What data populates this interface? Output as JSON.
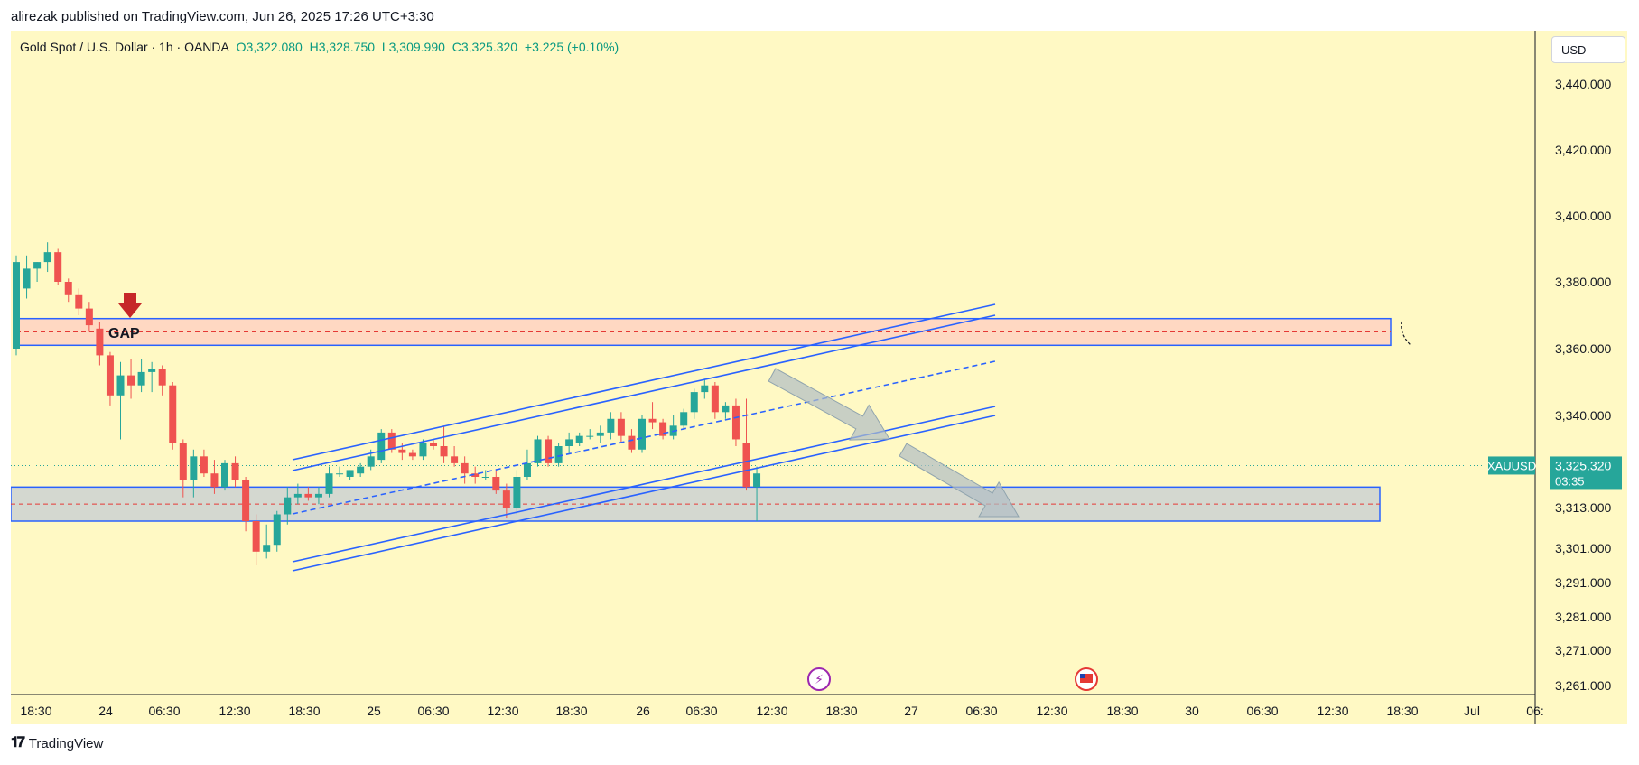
{
  "header": {
    "published_text": "alirezak published on TradingView.com, Jun 26, 2025 17:26 UTC+3:30"
  },
  "symbol": {
    "name": "Gold Spot / U.S. Dollar · 1h · OANDA",
    "open_label": "O",
    "open": "3,322.080",
    "high_label": "H",
    "high": "3,328.750",
    "low_label": "L",
    "low": "3,309.990",
    "close_label": "C",
    "close": "3,325.320",
    "change": "+3.225 (+0.10%)"
  },
  "currency": "USD",
  "price_tag": {
    "ticker": "XAUUSD",
    "price": "3,325.320",
    "countdown": "03:35"
  },
  "annotations": {
    "gap_label": "GAP"
  },
  "footer": {
    "brand": "TradingView"
  },
  "colors": {
    "background": "#fff9c4",
    "up": "#26a69a",
    "down": "#ef5350",
    "trend": "#2962ff",
    "price_tag": "#26a69a",
    "resistance_zone": "#ffd8c2",
    "support_zone": "#d4d8d0"
  },
  "chart_data": {
    "type": "candlestick",
    "interval": "1h",
    "ylim": [
      3261,
      3440
    ],
    "y_ticks": [
      "3,440.000",
      "3,420.000",
      "3,400.000",
      "3,380.000",
      "3,360.000",
      "3,340.000",
      "3,313.000",
      "3,301.000",
      "3,291.000",
      "3,281.000",
      "3,271.000",
      "3,261.000"
    ],
    "x_ticks": [
      "18:30",
      "24",
      "06:30",
      "12:30",
      "18:30",
      "25",
      "06:30",
      "12:30",
      "18:30",
      "26",
      "06:30",
      "12:30",
      "18:30",
      "27",
      "06:30",
      "12:30",
      "18:30",
      "30",
      "06:30",
      "12:30",
      "18:30",
      "Jul",
      "06:"
    ],
    "candles": [
      {
        "o": 3360,
        "h": 3388,
        "l": 3358,
        "c": 3386
      },
      {
        "o": 3378,
        "h": 3388,
        "l": 3375,
        "c": 3384
      },
      {
        "o": 3384,
        "h": 3386,
        "l": 3380,
        "c": 3386
      },
      {
        "o": 3386,
        "h": 3392,
        "l": 3383,
        "c": 3389
      },
      {
        "o": 3389,
        "h": 3390,
        "l": 3379,
        "c": 3380
      },
      {
        "o": 3380,
        "h": 3381,
        "l": 3374,
        "c": 3376
      },
      {
        "o": 3376,
        "h": 3378,
        "l": 3370,
        "c": 3372
      },
      {
        "o": 3372,
        "h": 3374,
        "l": 3365,
        "c": 3367
      },
      {
        "o": 3366,
        "h": 3368,
        "l": 3355,
        "c": 3358
      },
      {
        "o": 3358,
        "h": 3359,
        "l": 3343,
        "c": 3346
      },
      {
        "o": 3346,
        "h": 3356,
        "l": 3333,
        "c": 3352
      },
      {
        "o": 3352,
        "h": 3357,
        "l": 3345,
        "c": 3349
      },
      {
        "o": 3349,
        "h": 3357,
        "l": 3347,
        "c": 3353
      },
      {
        "o": 3353,
        "h": 3356,
        "l": 3347,
        "c": 3354
      },
      {
        "o": 3354,
        "h": 3355,
        "l": 3346,
        "c": 3349
      },
      {
        "o": 3349,
        "h": 3350,
        "l": 3330,
        "c": 3332
      },
      {
        "o": 3332,
        "h": 3333,
        "l": 3316,
        "c": 3321
      },
      {
        "o": 3321,
        "h": 3330,
        "l": 3316,
        "c": 3328
      },
      {
        "o": 3328,
        "h": 3330,
        "l": 3322,
        "c": 3323
      },
      {
        "o": 3323,
        "h": 3327,
        "l": 3317,
        "c": 3319
      },
      {
        "o": 3319,
        "h": 3327,
        "l": 3318,
        "c": 3326
      },
      {
        "o": 3326,
        "h": 3328,
        "l": 3319,
        "c": 3321
      },
      {
        "o": 3321,
        "h": 3322,
        "l": 3306,
        "c": 3309
      },
      {
        "o": 3309,
        "h": 3311,
        "l": 3296,
        "c": 3300
      },
      {
        "o": 3300,
        "h": 3308,
        "l": 3298,
        "c": 3302
      },
      {
        "o": 3302,
        "h": 3312,
        "l": 3300,
        "c": 3311
      },
      {
        "o": 3311,
        "h": 3319,
        "l": 3308,
        "c": 3316
      },
      {
        "o": 3316,
        "h": 3320,
        "l": 3314,
        "c": 3317
      },
      {
        "o": 3317,
        "h": 3319,
        "l": 3315,
        "c": 3316
      },
      {
        "o": 3316,
        "h": 3319,
        "l": 3314,
        "c": 3317
      },
      {
        "o": 3317,
        "h": 3325,
        "l": 3316,
        "c": 3323
      },
      {
        "o": 3323,
        "h": 3325,
        "l": 3322,
        "c": 3323
      },
      {
        "o": 3322,
        "h": 3324,
        "l": 3321,
        "c": 3324
      },
      {
        "o": 3323,
        "h": 3326,
        "l": 3322,
        "c": 3325
      },
      {
        "o": 3325,
        "h": 3330,
        "l": 3324,
        "c": 3328
      },
      {
        "o": 3327,
        "h": 3336,
        "l": 3326,
        "c": 3335
      },
      {
        "o": 3335,
        "h": 3336,
        "l": 3329,
        "c": 3330
      },
      {
        "o": 3330,
        "h": 3332,
        "l": 3327,
        "c": 3329
      },
      {
        "o": 3329,
        "h": 3330,
        "l": 3327,
        "c": 3328
      },
      {
        "o": 3328,
        "h": 3333,
        "l": 3327,
        "c": 3332
      },
      {
        "o": 3332,
        "h": 3333,
        "l": 3330,
        "c": 3331
      },
      {
        "o": 3331,
        "h": 3337,
        "l": 3326,
        "c": 3328
      },
      {
        "o": 3328,
        "h": 3331,
        "l": 3325,
        "c": 3326
      },
      {
        "o": 3326,
        "h": 3328,
        "l": 3320,
        "c": 3323
      },
      {
        "o": 3323,
        "h": 3325,
        "l": 3320,
        "c": 3322
      },
      {
        "o": 3322,
        "h": 3324,
        "l": 3321,
        "c": 3322
      },
      {
        "o": 3322,
        "h": 3324,
        "l": 3317,
        "c": 3318
      },
      {
        "o": 3318,
        "h": 3320,
        "l": 3310,
        "c": 3313
      },
      {
        "o": 3313,
        "h": 3324,
        "l": 3311,
        "c": 3322
      },
      {
        "o": 3322,
        "h": 3330,
        "l": 3321,
        "c": 3326
      },
      {
        "o": 3326,
        "h": 3334,
        "l": 3325,
        "c": 3333
      },
      {
        "o": 3333,
        "h": 3334,
        "l": 3325,
        "c": 3326
      },
      {
        "o": 3326,
        "h": 3332,
        "l": 3325,
        "c": 3331
      },
      {
        "o": 3331,
        "h": 3335,
        "l": 3329,
        "c": 3333
      },
      {
        "o": 3332,
        "h": 3335,
        "l": 3331,
        "c": 3334
      },
      {
        "o": 3334,
        "h": 3336,
        "l": 3333,
        "c": 3334
      },
      {
        "o": 3334,
        "h": 3337,
        "l": 3332,
        "c": 3335
      },
      {
        "o": 3335,
        "h": 3341,
        "l": 3333,
        "c": 3339
      },
      {
        "o": 3339,
        "h": 3341,
        "l": 3332,
        "c": 3334
      },
      {
        "o": 3334,
        "h": 3336,
        "l": 3329,
        "c": 3330
      },
      {
        "o": 3330,
        "h": 3340,
        "l": 3329,
        "c": 3339
      },
      {
        "o": 3339,
        "h": 3344,
        "l": 3336,
        "c": 3338
      },
      {
        "o": 3338,
        "h": 3339,
        "l": 3333,
        "c": 3334
      },
      {
        "o": 3334,
        "h": 3340,
        "l": 3333,
        "c": 3337
      },
      {
        "o": 3337,
        "h": 3342,
        "l": 3336,
        "c": 3341
      },
      {
        "o": 3341,
        "h": 3348,
        "l": 3339,
        "c": 3347
      },
      {
        "o": 3347,
        "h": 3351,
        "l": 3345,
        "c": 3349
      },
      {
        "o": 3349,
        "h": 3350,
        "l": 3339,
        "c": 3341
      },
      {
        "o": 3341,
        "h": 3344,
        "l": 3339,
        "c": 3343
      },
      {
        "o": 3343,
        "h": 3345,
        "l": 3331,
        "c": 3333
      },
      {
        "o": 3332,
        "h": 3345,
        "l": 3318,
        "c": 3319
      },
      {
        "o": 3319,
        "h": 3325,
        "l": 3309,
        "c": 3323
      }
    ],
    "zones": [
      {
        "name": "GAP",
        "from": 3361,
        "to": 3369
      },
      {
        "name": "",
        "from": 3309,
        "to": 3319
      }
    ]
  }
}
